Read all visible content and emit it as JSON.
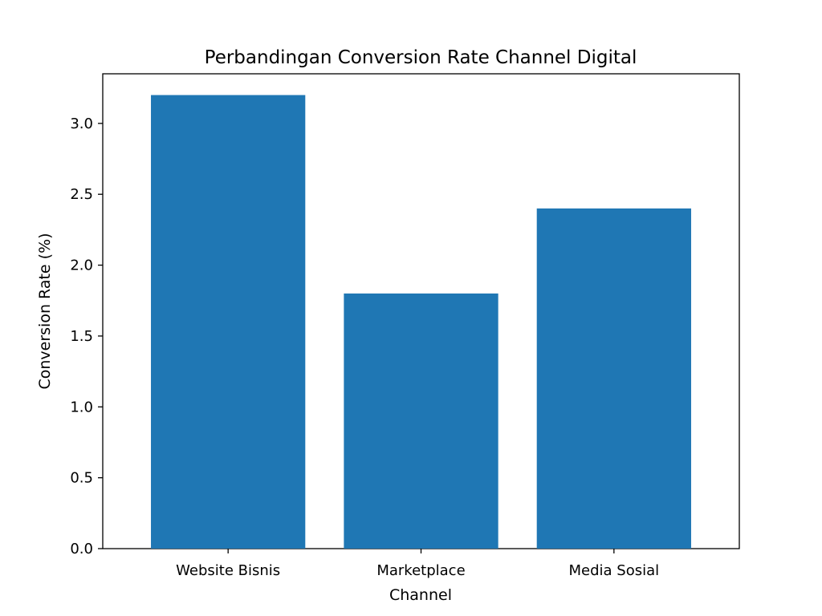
{
  "chart_data": {
    "type": "bar",
    "title": "Perbandingan Conversion Rate Channel Digital",
    "xlabel": "Channel",
    "ylabel": "Conversion Rate (%)",
    "categories": [
      "Website Bisnis",
      "Marketplace",
      "Media Sosial"
    ],
    "values": [
      3.2,
      1.8,
      2.4
    ],
    "ylim": [
      0,
      3.35
    ],
    "yticks": [
      0.0,
      0.5,
      1.0,
      1.5,
      2.0,
      2.5,
      3.0
    ],
    "ytick_labels": [
      "0.0",
      "0.5",
      "1.0",
      "1.5",
      "2.0",
      "2.5",
      "3.0"
    ],
    "bar_color": "#1f77b4",
    "grid": false,
    "legend": "none"
  }
}
